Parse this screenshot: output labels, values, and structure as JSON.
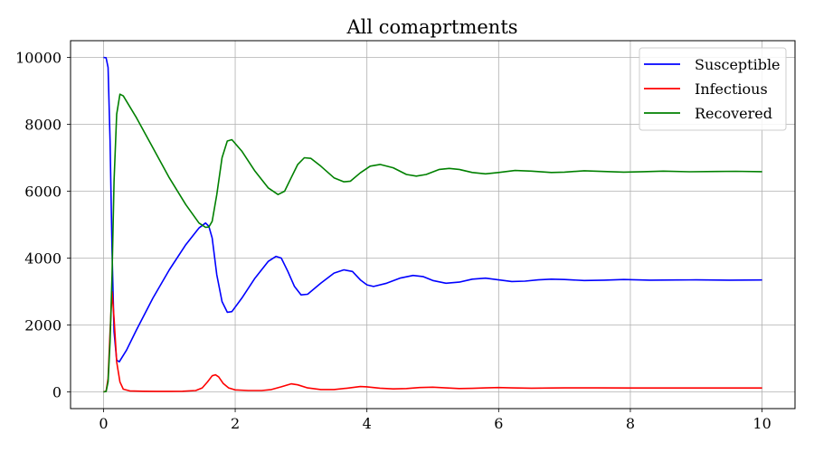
{
  "chart_data": {
    "type": "line",
    "title": "All comaprtments",
    "xlabel": "",
    "ylabel": "",
    "xlim": [
      -0.5,
      10.5
    ],
    "ylim": [
      -500,
      10500
    ],
    "xticks": [
      0,
      2,
      4,
      6,
      8,
      10
    ],
    "xtick_labels": [
      "0",
      "2",
      "4",
      "6",
      "8",
      "10"
    ],
    "yticks": [
      0,
      2000,
      4000,
      6000,
      8000,
      10000
    ],
    "ytick_labels": [
      "0",
      "2000",
      "4000",
      "6000",
      "8000",
      "10000"
    ],
    "grid": true,
    "legend_position": "top-right",
    "series": [
      {
        "name": "Susceptible",
        "color": "#0000ff",
        "points": [
          [
            0,
            10000
          ],
          [
            0.04,
            9990
          ],
          [
            0.07,
            9700
          ],
          [
            0.1,
            7500
          ],
          [
            0.13,
            4200
          ],
          [
            0.16,
            1800
          ],
          [
            0.2,
            950
          ],
          [
            0.24,
            900
          ],
          [
            0.35,
            1250
          ],
          [
            0.5,
            1850
          ],
          [
            0.75,
            2800
          ],
          [
            1.0,
            3650
          ],
          [
            1.25,
            4400
          ],
          [
            1.45,
            4900
          ],
          [
            1.55,
            5050
          ],
          [
            1.6,
            4950
          ],
          [
            1.65,
            4600
          ],
          [
            1.72,
            3500
          ],
          [
            1.8,
            2700
          ],
          [
            1.88,
            2380
          ],
          [
            1.95,
            2400
          ],
          [
            2.1,
            2800
          ],
          [
            2.3,
            3400
          ],
          [
            2.5,
            3900
          ],
          [
            2.62,
            4050
          ],
          [
            2.7,
            4000
          ],
          [
            2.8,
            3600
          ],
          [
            2.9,
            3150
          ],
          [
            3.0,
            2900
          ],
          [
            3.1,
            2920
          ],
          [
            3.3,
            3250
          ],
          [
            3.5,
            3550
          ],
          [
            3.65,
            3650
          ],
          [
            3.78,
            3600
          ],
          [
            3.9,
            3350
          ],
          [
            4.0,
            3200
          ],
          [
            4.1,
            3150
          ],
          [
            4.3,
            3250
          ],
          [
            4.5,
            3400
          ],
          [
            4.7,
            3480
          ],
          [
            4.85,
            3450
          ],
          [
            5.0,
            3330
          ],
          [
            5.2,
            3250
          ],
          [
            5.4,
            3280
          ],
          [
            5.6,
            3370
          ],
          [
            5.8,
            3400
          ],
          [
            6.0,
            3350
          ],
          [
            6.2,
            3300
          ],
          [
            6.4,
            3310
          ],
          [
            6.6,
            3350
          ],
          [
            6.8,
            3370
          ],
          [
            7.0,
            3360
          ],
          [
            7.3,
            3330
          ],
          [
            7.6,
            3340
          ],
          [
            7.9,
            3360
          ],
          [
            8.3,
            3340
          ],
          [
            8.7,
            3345
          ],
          [
            9.0,
            3350
          ],
          [
            9.5,
            3340
          ],
          [
            10.0,
            3345
          ]
        ]
      },
      {
        "name": "Infectious",
        "color": "#ff0000",
        "points": [
          [
            0,
            0
          ],
          [
            0.04,
            20
          ],
          [
            0.07,
            400
          ],
          [
            0.1,
            1800
          ],
          [
            0.13,
            3000
          ],
          [
            0.16,
            2200
          ],
          [
            0.2,
            900
          ],
          [
            0.25,
            300
          ],
          [
            0.3,
            80
          ],
          [
            0.4,
            30
          ],
          [
            0.6,
            20
          ],
          [
            0.8,
            15
          ],
          [
            1.0,
            15
          ],
          [
            1.2,
            18
          ],
          [
            1.4,
            40
          ],
          [
            1.5,
            120
          ],
          [
            1.58,
            300
          ],
          [
            1.65,
            480
          ],
          [
            1.7,
            510
          ],
          [
            1.75,
            450
          ],
          [
            1.82,
            250
          ],
          [
            1.9,
            120
          ],
          [
            2.0,
            60
          ],
          [
            2.2,
            40
          ],
          [
            2.4,
            40
          ],
          [
            2.55,
            70
          ],
          [
            2.7,
            150
          ],
          [
            2.85,
            240
          ],
          [
            2.95,
            210
          ],
          [
            3.1,
            120
          ],
          [
            3.3,
            70
          ],
          [
            3.5,
            70
          ],
          [
            3.7,
            110
          ],
          [
            3.9,
            160
          ],
          [
            4.0,
            150
          ],
          [
            4.2,
            110
          ],
          [
            4.4,
            90
          ],
          [
            4.6,
            100
          ],
          [
            4.8,
            130
          ],
          [
            5.0,
            140
          ],
          [
            5.2,
            120
          ],
          [
            5.4,
            100
          ],
          [
            5.6,
            105
          ],
          [
            5.8,
            120
          ],
          [
            6.0,
            130
          ],
          [
            6.2,
            120
          ],
          [
            6.5,
            110
          ],
          [
            6.8,
            115
          ],
          [
            7.0,
            120
          ],
          [
            7.5,
            118
          ],
          [
            8.0,
            115
          ],
          [
            8.5,
            116
          ],
          [
            9.0,
            115
          ],
          [
            10.0,
            115
          ]
        ]
      },
      {
        "name": "Recovered",
        "color": "#008000",
        "points": [
          [
            0,
            0
          ],
          [
            0.04,
            10
          ],
          [
            0.07,
            300
          ],
          [
            0.1,
            1500
          ],
          [
            0.13,
            3500
          ],
          [
            0.16,
            6300
          ],
          [
            0.2,
            8300
          ],
          [
            0.25,
            8900
          ],
          [
            0.3,
            8850
          ],
          [
            0.5,
            8200
          ],
          [
            0.75,
            7300
          ],
          [
            1.0,
            6400
          ],
          [
            1.25,
            5600
          ],
          [
            1.45,
            5050
          ],
          [
            1.55,
            4920
          ],
          [
            1.6,
            4930
          ],
          [
            1.65,
            5100
          ],
          [
            1.72,
            5900
          ],
          [
            1.8,
            7000
          ],
          [
            1.88,
            7500
          ],
          [
            1.95,
            7540
          ],
          [
            2.1,
            7200
          ],
          [
            2.3,
            6600
          ],
          [
            2.5,
            6100
          ],
          [
            2.65,
            5900
          ],
          [
            2.75,
            6000
          ],
          [
            2.85,
            6400
          ],
          [
            2.95,
            6800
          ],
          [
            3.05,
            7000
          ],
          [
            3.15,
            6980
          ],
          [
            3.3,
            6750
          ],
          [
            3.5,
            6400
          ],
          [
            3.65,
            6280
          ],
          [
            3.75,
            6300
          ],
          [
            3.9,
            6550
          ],
          [
            4.05,
            6750
          ],
          [
            4.2,
            6800
          ],
          [
            4.4,
            6700
          ],
          [
            4.6,
            6500
          ],
          [
            4.75,
            6450
          ],
          [
            4.9,
            6500
          ],
          [
            5.1,
            6650
          ],
          [
            5.25,
            6680
          ],
          [
            5.4,
            6650
          ],
          [
            5.6,
            6560
          ],
          [
            5.8,
            6520
          ],
          [
            6.0,
            6560
          ],
          [
            6.25,
            6620
          ],
          [
            6.5,
            6600
          ],
          [
            6.8,
            6560
          ],
          [
            7.0,
            6570
          ],
          [
            7.3,
            6610
          ],
          [
            7.6,
            6590
          ],
          [
            7.9,
            6570
          ],
          [
            8.2,
            6585
          ],
          [
            8.5,
            6600
          ],
          [
            8.9,
            6580
          ],
          [
            9.3,
            6590
          ],
          [
            9.6,
            6595
          ],
          [
            10.0,
            6585
          ]
        ]
      }
    ]
  }
}
